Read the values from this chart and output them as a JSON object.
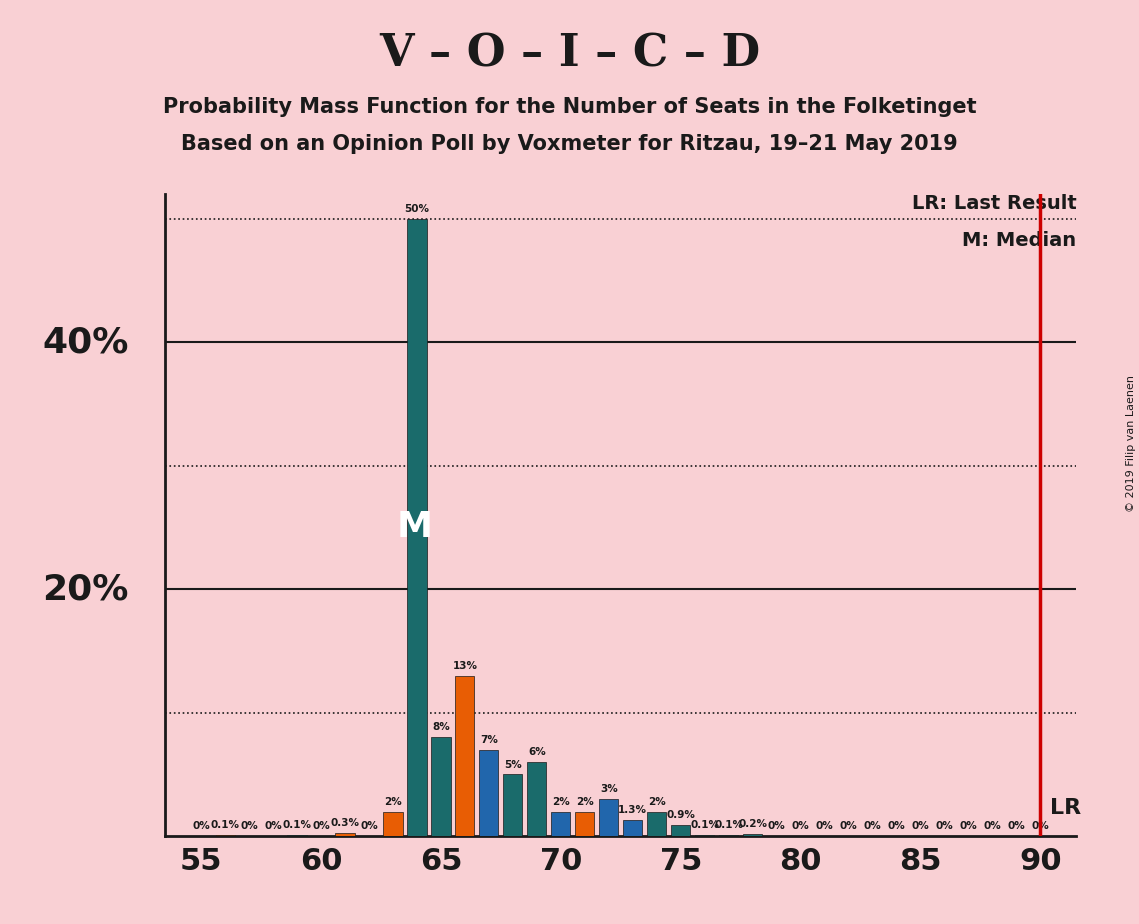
{
  "title": "V – O – I – C – D",
  "subtitle1": "Probability Mass Function for the Number of Seats in the Folketinget",
  "subtitle2": "Based on an Opinion Poll by Voxmeter for Ritzau, 19–21 May 2019",
  "copyright": "© 2019 Filip van Laenen",
  "lr_label": "LR: Last Result",
  "m_label": "M: Median",
  "lr_x": 90,
  "median_x": 64,
  "seats": [
    55,
    56,
    57,
    58,
    59,
    60,
    61,
    62,
    63,
    64,
    65,
    66,
    67,
    68,
    69,
    70,
    71,
    72,
    73,
    74,
    75,
    76,
    77,
    78,
    79,
    80,
    81,
    82,
    83,
    84,
    85,
    86,
    87,
    88,
    89,
    90
  ],
  "values": [
    0.0,
    0.1,
    0.0,
    0.0,
    0.1,
    0.0,
    0.3,
    0.0,
    2.0,
    50.0,
    8.0,
    13.0,
    7.0,
    5.0,
    6.0,
    2.0,
    2.0,
    3.0,
    1.3,
    2.0,
    0.9,
    0.1,
    0.1,
    0.2,
    0.0,
    0.0,
    0.0,
    0.0,
    0.0,
    0.0,
    0.0,
    0.0,
    0.0,
    0.0,
    0.0,
    0.0
  ],
  "bar_colors": [
    "#1a6b6b",
    "#e85d04",
    "#1a6b6b",
    "#e85d04",
    "#1a6b6b",
    "#e85d04",
    "#e85d04",
    "#2166ac",
    "#e85d04",
    "#1a6b6b",
    "#1a6b6b",
    "#e85d04",
    "#2166ac",
    "#1a6b6b",
    "#1a6b6b",
    "#2166ac",
    "#e85d04",
    "#2166ac",
    "#2166ac",
    "#1a6b6b",
    "#1a6b6b",
    "#1a6b6b",
    "#1a6b6b",
    "#1a6b6b",
    "#1a6b6b",
    "#1a6b6b",
    "#1a6b6b",
    "#1a6b6b",
    "#1a6b6b",
    "#1a6b6b",
    "#1a6b6b",
    "#1a6b6b",
    "#1a6b6b",
    "#1a6b6b",
    "#1a6b6b",
    "#1a6b6b"
  ],
  "background_color": "#f9d0d4",
  "bar_edge_color": "#1a1a1a",
  "ylim": [
    0,
    52
  ],
  "grid_lines": [
    {
      "y": 10,
      "style": "dotted"
    },
    {
      "y": 20,
      "style": "solid"
    },
    {
      "y": 30,
      "style": "dotted"
    },
    {
      "y": 40,
      "style": "solid"
    },
    {
      "y": 50,
      "style": "dotted"
    }
  ],
  "ytick_labels": [
    20,
    40
  ],
  "xlim": [
    53.5,
    91.5
  ],
  "xticks": [
    55,
    60,
    65,
    70,
    75,
    80,
    85,
    90
  ]
}
